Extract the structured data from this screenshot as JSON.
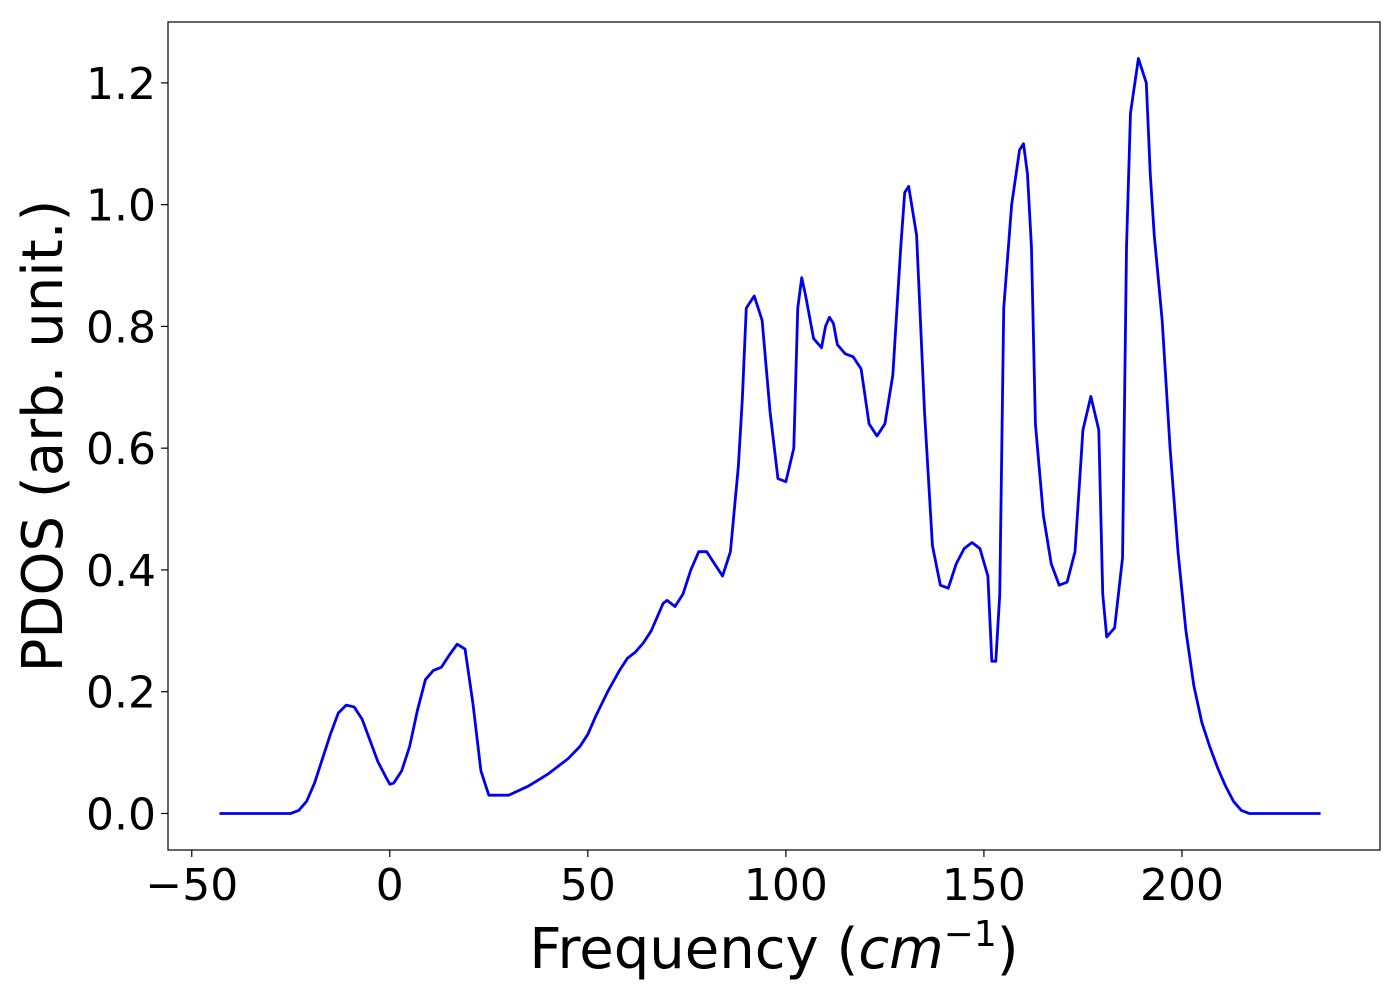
{
  "chart_data": {
    "type": "line",
    "title": "",
    "xlabel_prefix": "Frequency (",
    "xlabel_unit_base": "cm",
    "xlabel_unit_exp": "−1",
    "xlabel_suffix": ")",
    "ylabel": "PDOS (arb. unit.)",
    "xlim": [
      -56,
      250
    ],
    "ylim": [
      -0.06,
      1.3
    ],
    "xticks": [
      -50,
      0,
      50,
      100,
      150,
      200
    ],
    "xtick_labels": [
      "−50",
      "0",
      "50",
      "100",
      "150",
      "200"
    ],
    "yticks": [
      0.0,
      0.2,
      0.4,
      0.6,
      0.8,
      1.0,
      1.2
    ],
    "ytick_labels": [
      "0.0",
      "0.2",
      "0.4",
      "0.6",
      "0.8",
      "1.0",
      "1.2"
    ],
    "grid": false,
    "line_color": "#0000ee",
    "series": [
      {
        "x": [
          -43,
          -25,
          -23,
          -21,
          -19,
          -17,
          -15,
          -13,
          -11,
          -9,
          -7,
          -5,
          -3,
          -1,
          0,
          1,
          3,
          5,
          7,
          9,
          11,
          13,
          15,
          17,
          19,
          21,
          23,
          25,
          30,
          35,
          40,
          45,
          48,
          50,
          52,
          55,
          58,
          60,
          62,
          64,
          66,
          68,
          69,
          70,
          72,
          74,
          76,
          78,
          80,
          82,
          84,
          86,
          88,
          89,
          90,
          92,
          94,
          96,
          98,
          100,
          102,
          103,
          104,
          105,
          107,
          109,
          110,
          111,
          112,
          113,
          115,
          117,
          119,
          121,
          123,
          125,
          127,
          129,
          130,
          131,
          133,
          135,
          137,
          139,
          141,
          143,
          145,
          147,
          149,
          151,
          152,
          153,
          154,
          155,
          157,
          159,
          160,
          161,
          162,
          163,
          165,
          167,
          169,
          171,
          173,
          175,
          177,
          179,
          180,
          181,
          183,
          185,
          186,
          187,
          189,
          191,
          192,
          193,
          195,
          197,
          199,
          201,
          203,
          205,
          207,
          209,
          211,
          213,
          215,
          217,
          220,
          235
        ],
        "y": [
          0.0,
          0.0,
          0.005,
          0.02,
          0.05,
          0.09,
          0.13,
          0.165,
          0.178,
          0.175,
          0.155,
          0.12,
          0.085,
          0.06,
          0.048,
          0.05,
          0.07,
          0.11,
          0.17,
          0.22,
          0.235,
          0.24,
          0.26,
          0.278,
          0.27,
          0.18,
          0.07,
          0.03,
          0.03,
          0.045,
          0.065,
          0.09,
          0.11,
          0.13,
          0.16,
          0.2,
          0.235,
          0.255,
          0.265,
          0.28,
          0.3,
          0.33,
          0.345,
          0.35,
          0.34,
          0.36,
          0.4,
          0.43,
          0.43,
          0.41,
          0.39,
          0.43,
          0.57,
          0.68,
          0.83,
          0.85,
          0.81,
          0.66,
          0.55,
          0.545,
          0.6,
          0.83,
          0.88,
          0.85,
          0.78,
          0.765,
          0.8,
          0.815,
          0.805,
          0.77,
          0.755,
          0.75,
          0.73,
          0.64,
          0.62,
          0.64,
          0.72,
          0.93,
          1.02,
          1.03,
          0.95,
          0.66,
          0.44,
          0.375,
          0.37,
          0.41,
          0.435,
          0.445,
          0.435,
          0.39,
          0.25,
          0.25,
          0.36,
          0.83,
          1.0,
          1.09,
          1.1,
          1.05,
          0.93,
          0.64,
          0.49,
          0.41,
          0.375,
          0.38,
          0.43,
          0.63,
          0.685,
          0.63,
          0.36,
          0.29,
          0.305,
          0.42,
          0.93,
          1.15,
          1.24,
          1.2,
          1.05,
          0.95,
          0.81,
          0.6,
          0.43,
          0.3,
          0.21,
          0.15,
          0.11,
          0.075,
          0.045,
          0.02,
          0.005,
          0.0,
          0.0,
          0.0
        ]
      }
    ]
  }
}
